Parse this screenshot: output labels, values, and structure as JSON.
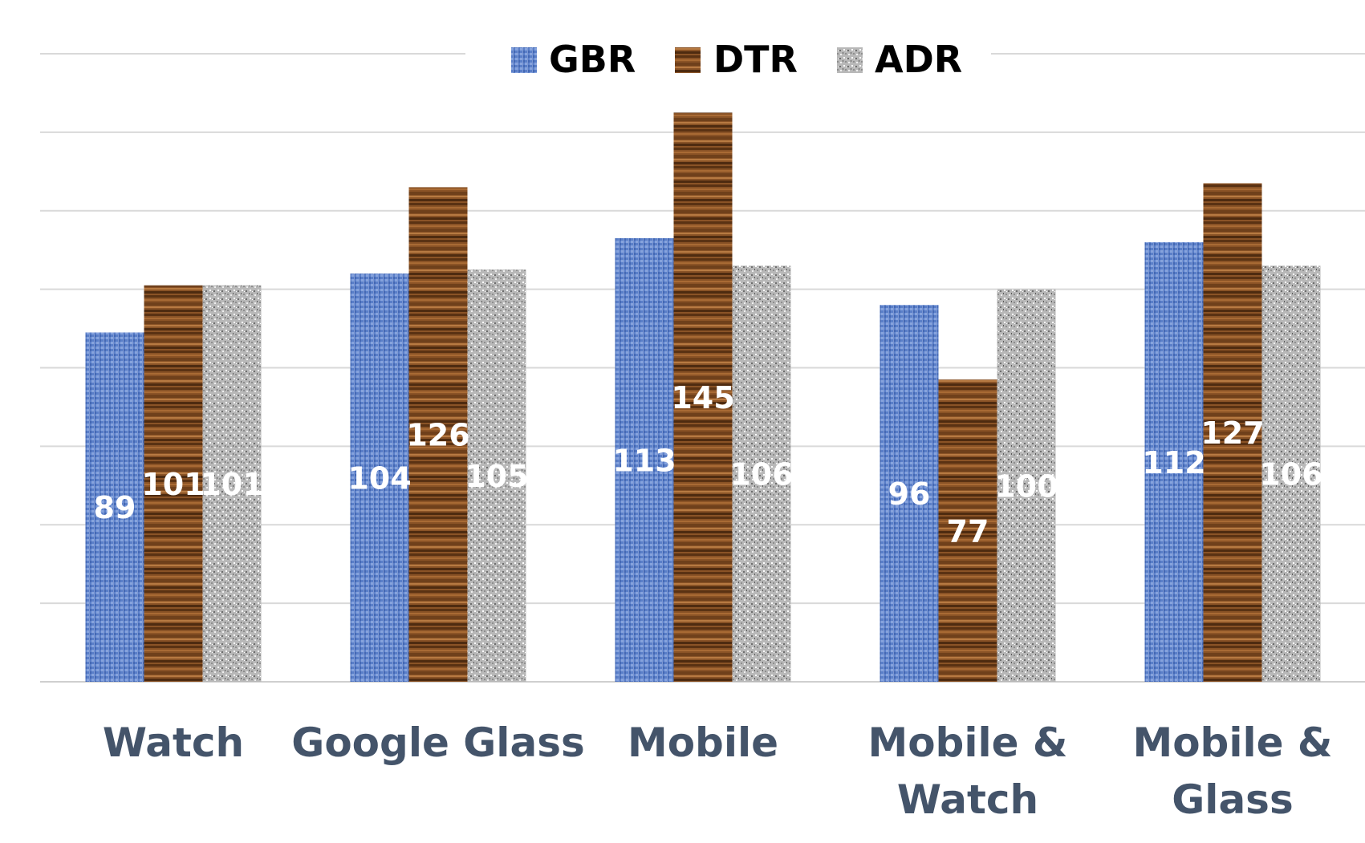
{
  "chart_data": {
    "type": "bar",
    "title": "",
    "xlabel": "",
    "ylabel": "",
    "ylim": [
      0,
      160
    ],
    "grid": true,
    "legend_position": "top",
    "categories": [
      "Watch",
      "Google Glass",
      "Mobile",
      "Mobile & Watch",
      "Mobile & Glass"
    ],
    "category_lines": [
      [
        "Watch"
      ],
      [
        "Google Glass"
      ],
      [
        "Mobile"
      ],
      [
        "Mobile &",
        "Watch"
      ],
      [
        "Mobile &",
        "Glass"
      ]
    ],
    "series": [
      {
        "name": "GBR",
        "values": [
          89,
          104,
          113,
          96,
          112
        ],
        "color": "#5b7fc7",
        "texture": "blue-woven"
      },
      {
        "name": "DTR",
        "values": [
          101,
          126,
          145,
          77,
          127
        ],
        "color": "#8a5326",
        "texture": "wood-grain"
      },
      {
        "name": "ADR",
        "values": [
          101,
          105,
          106,
          100,
          106
        ],
        "color": "#b5b5b5",
        "texture": "granite"
      }
    ]
  }
}
